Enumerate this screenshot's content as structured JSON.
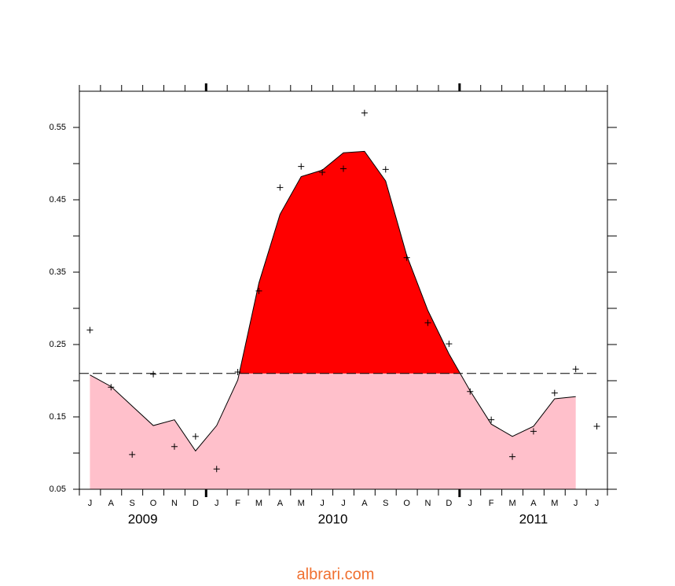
{
  "chart_data": {
    "type": "area",
    "categories": [
      "J",
      "A",
      "S",
      "O",
      "N",
      "D",
      "J",
      "F",
      "M",
      "A",
      "M",
      "J",
      "J",
      "A",
      "S",
      "O",
      "N",
      "D",
      "J",
      "F",
      "M",
      "A",
      "M",
      "J",
      "J"
    ],
    "year_groups": [
      {
        "label": "2009",
        "count": 6
      },
      {
        "label": "2010",
        "count": 12
      },
      {
        "label": "2011",
        "count": 7
      }
    ],
    "values": [
      0.208,
      0.192,
      0.165,
      0.138,
      0.146,
      0.103,
      0.138,
      0.201,
      0.335,
      0.43,
      0.482,
      0.491,
      0.515,
      0.517,
      0.476,
      0.373,
      0.297,
      0.237,
      0.186,
      0.14,
      0.123,
      0.137,
      0.175,
      0.178,
      null
    ],
    "markers": [
      0.27,
      0.191,
      0.098,
      0.209,
      0.109,
      0.123,
      0.078,
      0.212,
      0.324,
      0.467,
      0.496,
      0.488,
      0.493,
      0.57,
      0.492,
      0.37,
      0.28,
      0.251,
      0.185,
      0.146,
      0.095,
      0.13,
      0.183,
      0.216,
      0.137
    ],
    "threshold": 0.21,
    "colors": {
      "above": "#ff0000",
      "below": "#ffc0cb",
      "line": "#000000"
    },
    "ylim": [
      0.05,
      0.6
    ],
    "yticks": [
      0.05,
      0.15,
      0.25,
      0.35,
      0.45,
      0.55
    ],
    "yminor": [
      0.1,
      0.2,
      0.3,
      0.4,
      0.5
    ]
  },
  "footer": "albrari.com"
}
